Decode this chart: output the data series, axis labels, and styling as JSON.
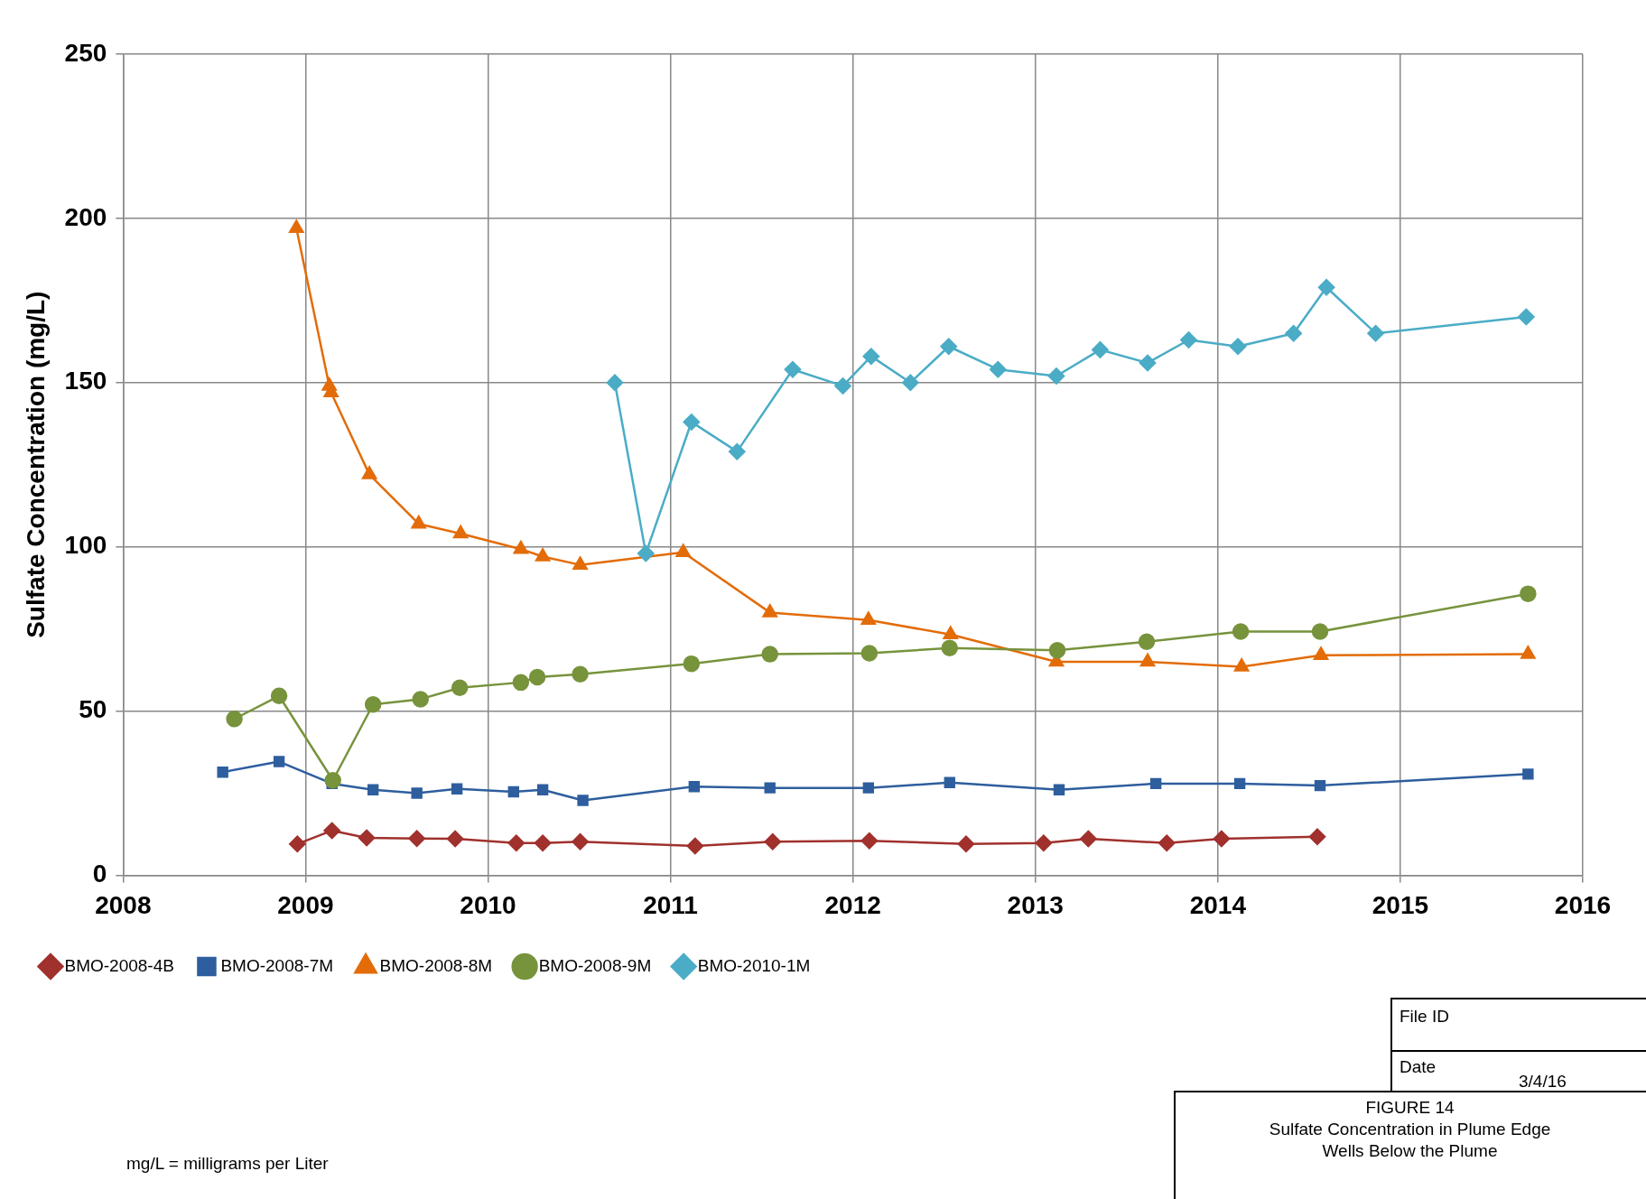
{
  "chart_data": {
    "type": "line",
    "ylabel": "Sulfate Concentration (mg/L)",
    "xlim": [
      2008,
      2016
    ],
    "xticks": [
      2008,
      2009,
      2010,
      2011,
      2012,
      2013,
      2014,
      2015,
      2016
    ],
    "ylim": [
      0,
      250
    ],
    "yticks": [
      0,
      50,
      100,
      150,
      200,
      250
    ],
    "grid": true,
    "legend": "bottom",
    "line_style": "solid",
    "series": [
      {
        "name": "BMO-2008-4B",
        "color": "#a0312d",
        "marker": "diamond",
        "x": [
          2008.955,
          2009.145,
          2009.335,
          2009.61,
          2009.82,
          2010.155,
          2010.3,
          2010.505,
          2011.135,
          2011.56,
          2012.09,
          2012.62,
          2013.045,
          2013.29,
          2013.72,
          2014.02,
          2014.545
        ],
        "values": [
          9.5,
          13.6,
          11.4,
          11.2,
          11.1,
          9.8,
          9.8,
          10.2,
          8.9,
          10.2,
          10.5,
          9.5,
          9.8,
          11.1,
          9.8,
          11.1,
          11.7
        ]
      },
      {
        "name": "BMO-2008-7M",
        "color": "#2e5e9e",
        "marker": "square",
        "x": [
          2008.546,
          2008.855,
          2009.145,
          2009.37,
          2009.61,
          2009.83,
          2010.14,
          2010.3,
          2010.52,
          2011.13,
          2011.545,
          2012.085,
          2012.53,
          2013.13,
          2013.66,
          2014.12,
          2014.56,
          2015.7
        ],
        "values": [
          31.4,
          34.6,
          27.9,
          26,
          25,
          26.3,
          25.4,
          26,
          22.8,
          27,
          26.6,
          26.6,
          28.2,
          26,
          27.9,
          27.9,
          27.3,
          30.8
        ]
      },
      {
        "name": "BMO-2008-8M",
        "color": "#e36c09",
        "marker": "triangle",
        "x": [
          2008.95,
          2009.13,
          2009.14,
          2009.35,
          2009.62,
          2009.85,
          2010.18,
          2010.3,
          2010.505,
          2011.07,
          2011.545,
          2012.085,
          2012.535,
          2013.115,
          2013.615,
          2014.13,
          2014.565,
          2015.7
        ],
        "values": [
          197,
          149,
          147,
          122,
          107,
          104,
          99.3,
          97,
          94.5,
          98.3,
          80,
          77.7,
          73.3,
          65,
          65,
          63.5,
          67,
          67.3
        ]
      },
      {
        "name": "BMO-2008-9M",
        "color": "#77933c",
        "marker": "circle",
        "x": [
          2008.61,
          2008.855,
          2009.15,
          2009.37,
          2009.63,
          2009.845,
          2010.18,
          2010.27,
          2010.505,
          2011.115,
          2011.545,
          2012.09,
          2012.53,
          2013.12,
          2013.61,
          2014.125,
          2014.56,
          2015.7
        ],
        "values": [
          47.6,
          54.6,
          28.9,
          52,
          53.6,
          57.1,
          58.7,
          60.3,
          61.2,
          64.4,
          67.3,
          67.6,
          69.2,
          68.5,
          71.1,
          74.2,
          74.2,
          85.7
        ]
      },
      {
        "name": "BMO-2010-1M",
        "color": "#4bacc6",
        "marker": "diamond",
        "x": [
          2010.695,
          2010.865,
          2011.115,
          2011.365,
          2011.67,
          2011.945,
          2012.1,
          2012.315,
          2012.525,
          2012.795,
          2013.115,
          2013.355,
          2013.615,
          2013.84,
          2014.11,
          2014.415,
          2014.595,
          2014.865,
          2015.69
        ],
        "values": [
          150,
          98,
          138,
          129,
          154,
          149,
          158,
          150,
          161,
          154,
          152,
          160,
          156,
          163,
          161,
          165,
          179,
          165,
          170
        ]
      }
    ],
    "annotations": [
      "File ID",
      "Date",
      "3/4/16",
      "FIGURE 14",
      "Sulfate Concentration in Plume Edge Wells Below the Plume",
      "mg/L = milligrams per Liter"
    ]
  }
}
